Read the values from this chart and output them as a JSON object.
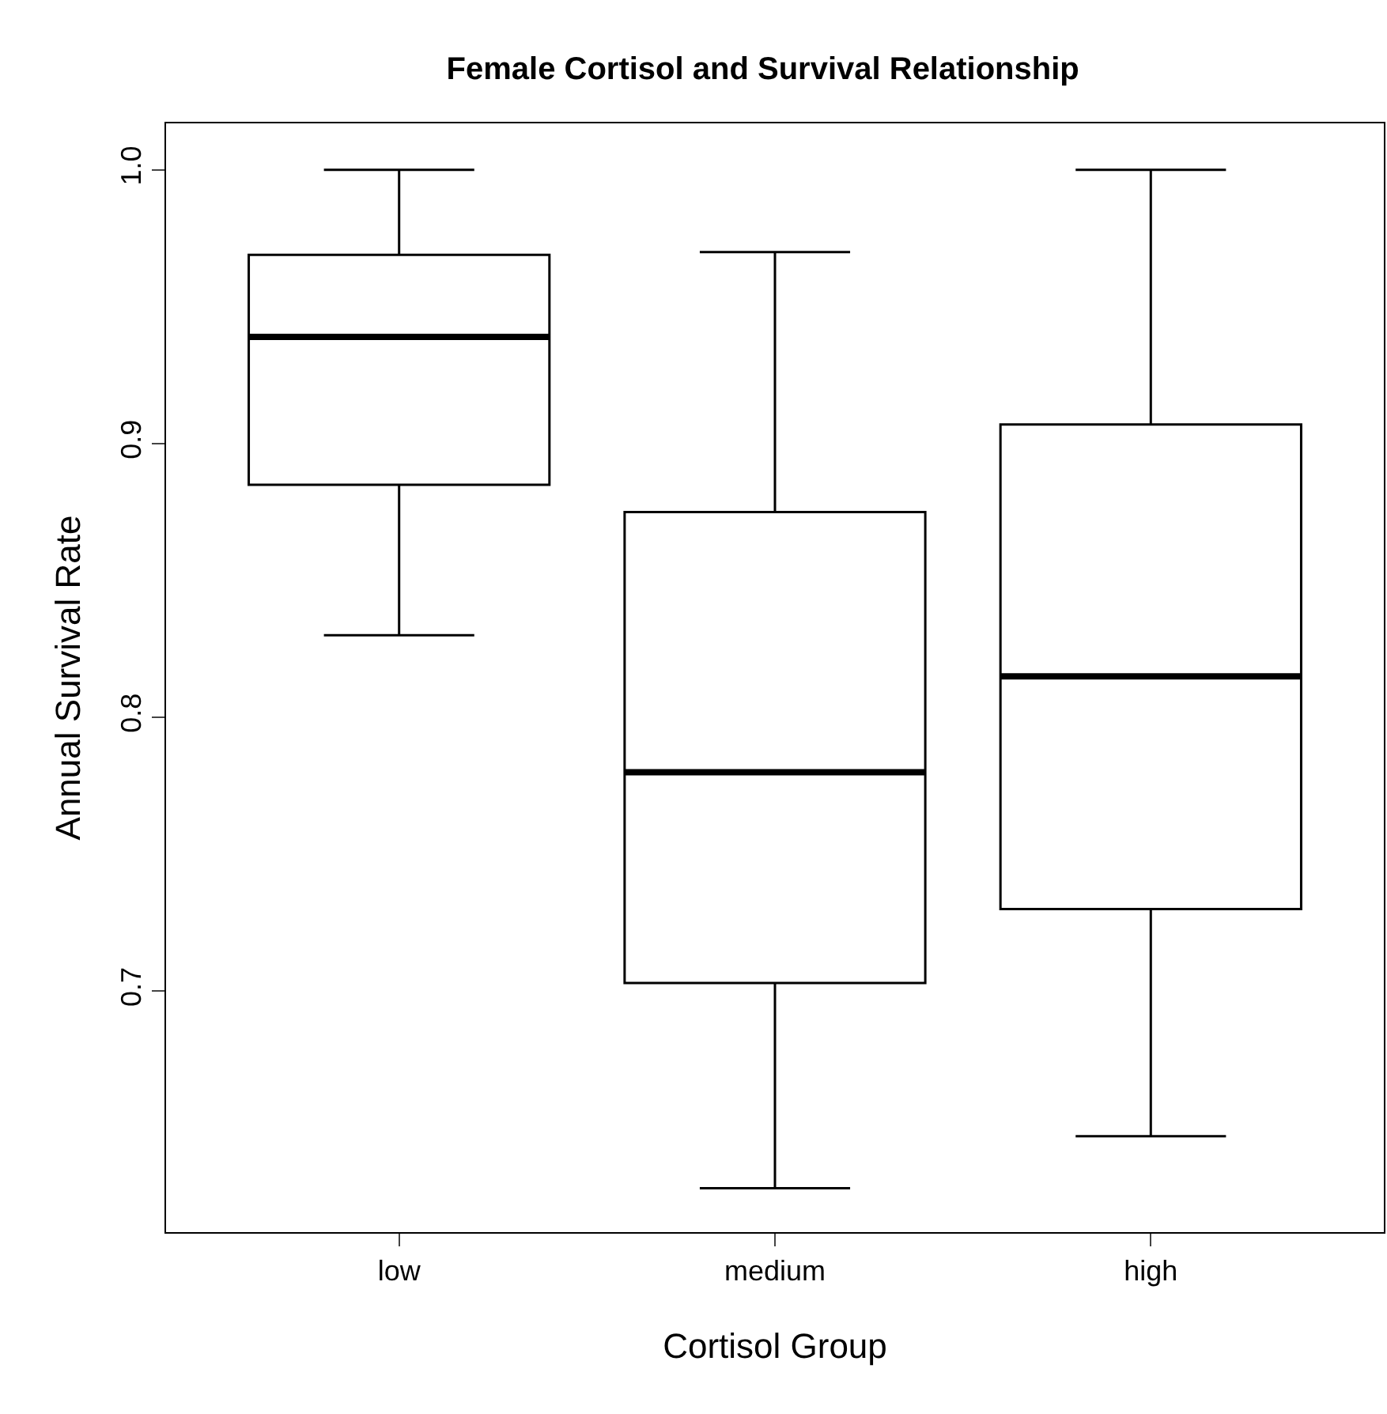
{
  "chart_data": {
    "type": "box",
    "title": "Female Cortisol and Survival Relationship",
    "xlabel": "Cortisol Group",
    "ylabel": "Annual Survival Rate",
    "categories": [
      "low",
      "medium",
      "high"
    ],
    "boxes": [
      {
        "low": 0.83,
        "q1": 0.885,
        "median": 0.939,
        "q3": 0.969,
        "high": 1.0
      },
      {
        "low": 0.628,
        "q1": 0.703,
        "median": 0.78,
        "q3": 0.875,
        "high": 0.97
      },
      {
        "low": 0.647,
        "q1": 0.73,
        "median": 0.815,
        "q3": 0.907,
        "high": 1.0
      }
    ],
    "color": "#000000",
    "ylim": [
      0.612,
      1.017
    ],
    "yticks": [
      {
        "value": 0.7,
        "label": "0.7"
      },
      {
        "value": 0.8,
        "label": "0.8"
      },
      {
        "value": 0.9,
        "label": "0.9"
      },
      {
        "value": 1.0,
        "label": "1.0"
      }
    ]
  }
}
